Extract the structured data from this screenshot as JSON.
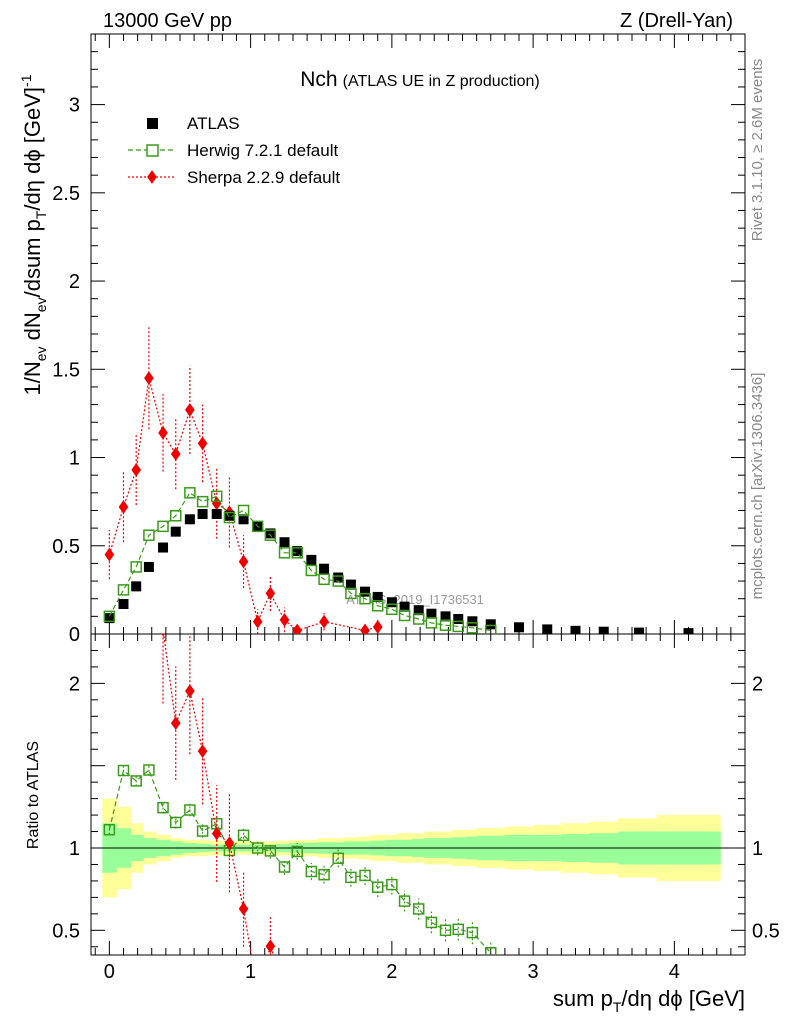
{
  "header": {
    "left": "13000 GeV pp",
    "right": "Z (Drell-Yan)"
  },
  "side_text": {
    "rivet": "Rivet 3.1.10, ≥ 2.6M events",
    "mcplots": "mcplots.cern.ch [arXiv:1306.3436]"
  },
  "chart_data": {
    "type": "scatter",
    "title": "Nch",
    "subtitle": "(ATLAS UE in Z production)",
    "xlabel": "sum pT/dη dϕ [GeV]",
    "ylabel": "1/Nev dNev/dsum pT/dη dϕ [GeV]-1",
    "watermark": "ATLAS_2019_I1736531",
    "xlim": [
      -0.13,
      4.5
    ],
    "ylim": [
      0,
      3.4
    ],
    "x_ticks": [
      "0",
      "1",
      "2",
      "3",
      "4"
    ],
    "y_ticks": [
      "0",
      "0.5",
      "1",
      "1.5",
      "2",
      "2.5",
      "3"
    ],
    "ratio": {
      "ylabel": "Ratio to ATLAS",
      "ylim": [
        0.35,
        2.3
      ],
      "y_ticks": [
        "0.5",
        "1",
        "2"
      ]
    },
    "legend_position": "top-left",
    "series": [
      {
        "name": "ATLAS",
        "color": "#000000",
        "marker": "filled-square",
        "x": [
          0.0,
          0.1,
          0.19,
          0.28,
          0.38,
          0.47,
          0.57,
          0.66,
          0.76,
          0.85,
          0.95,
          1.05,
          1.14,
          1.24,
          1.33,
          1.43,
          1.52,
          1.62,
          1.71,
          1.81,
          1.9,
          2.0,
          2.09,
          2.19,
          2.28,
          2.38,
          2.47,
          2.57,
          2.7,
          2.9,
          3.1,
          3.3,
          3.5,
          3.75,
          4.1
        ],
        "y": [
          0.09,
          0.17,
          0.27,
          0.38,
          0.49,
          0.58,
          0.65,
          0.68,
          0.68,
          0.67,
          0.65,
          0.61,
          0.57,
          0.52,
          0.47,
          0.42,
          0.37,
          0.32,
          0.28,
          0.24,
          0.21,
          0.18,
          0.155,
          0.135,
          0.115,
          0.1,
          0.085,
          0.072,
          0.055,
          0.038,
          0.026,
          0.018,
          0.013,
          0.008,
          0.005
        ]
      },
      {
        "name": "Herwig 7.2.1 default",
        "color": "#3a9b1a",
        "marker": "open-square",
        "x": [
          0.0,
          0.1,
          0.19,
          0.28,
          0.38,
          0.47,
          0.57,
          0.66,
          0.76,
          0.85,
          0.95,
          1.05,
          1.14,
          1.24,
          1.33,
          1.43,
          1.52,
          1.62,
          1.71,
          1.81,
          1.9,
          2.0,
          2.09,
          2.19,
          2.28,
          2.38,
          2.47,
          2.57,
          2.7
        ],
        "y": [
          0.1,
          0.25,
          0.38,
          0.56,
          0.61,
          0.67,
          0.8,
          0.75,
          0.78,
          0.66,
          0.7,
          0.61,
          0.56,
          0.46,
          0.46,
          0.36,
          0.31,
          0.3,
          0.23,
          0.2,
          0.16,
          0.14,
          0.105,
          0.085,
          0.063,
          0.05,
          0.043,
          0.035,
          0.02
        ]
      },
      {
        "name": "Sherpa 2.2.9 default",
        "color": "#ee0000",
        "marker": "diamond",
        "x": [
          0.0,
          0.1,
          0.19,
          0.28,
          0.38,
          0.47,
          0.57,
          0.66,
          0.76,
          0.85,
          0.95,
          1.05,
          1.14,
          1.24,
          1.33,
          1.52,
          1.81,
          1.9
        ],
        "y": [
          0.45,
          0.72,
          0.93,
          1.45,
          1.14,
          1.02,
          1.27,
          1.08,
          0.74,
          0.69,
          0.41,
          0.07,
          0.23,
          0.08,
          0.02,
          0.07,
          0.02,
          0.04
        ],
        "err": [
          0.14,
          0.2,
          0.2,
          0.29,
          0.22,
          0.2,
          0.25,
          0.22,
          0.2,
          0.2,
          0.15,
          0.07,
          0.1,
          0.07,
          0.02,
          0.05,
          0.02,
          0.04
        ]
      }
    ]
  }
}
